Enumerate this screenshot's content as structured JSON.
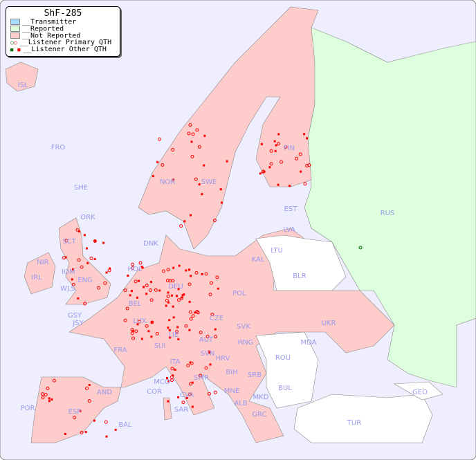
{
  "title": "ShF-285",
  "legend": [
    {
      "label": "__Transmitter",
      "color": "#aaddff"
    },
    {
      "label": "__Reported",
      "color": "#ddffdd"
    },
    {
      "label": "__Not Reported",
      "color": "#ffcccc"
    },
    {
      "label": "__Listener Primary QTH",
      "marker": "circle"
    },
    {
      "label": "__Listener Other QTH",
      "marker": "square"
    }
  ],
  "colors": {
    "sea": "#eeeeff",
    "reported": "#ddffdd",
    "not_reported": "#ffcccc",
    "unlisted": "#ffffff",
    "listener": "#ff0000",
    "primary_reported": "#006600",
    "label": "#9999ee"
  },
  "countries": [
    "ISL",
    "FRO",
    "SHE",
    "ORK",
    "NOR",
    "SWE",
    "FIN",
    "RUS",
    "EST",
    "LVA",
    "LTU",
    "KAL",
    "DNK",
    "HOL",
    "BEL",
    "DEU",
    "POL",
    "BLR",
    "UKR",
    "CZE",
    "SVK",
    "AUT",
    "HNG",
    "LUX",
    "FRA",
    "SUI",
    "LIE",
    "SVN",
    "HRV",
    "ITA",
    "MDA",
    "ROU",
    "BIH",
    "SRB",
    "SMR",
    "MCO",
    "COR",
    "CVA",
    "MNE",
    "ALB",
    "MKD",
    "BUL",
    "GEO",
    "AND",
    "POR",
    "ESP",
    "BAL",
    "SAR",
    "GRC",
    "TUR",
    "IRL",
    "NIR",
    "SCT",
    "IOM",
    "WLS",
    "ENG",
    "GSY",
    "JSY"
  ]
}
